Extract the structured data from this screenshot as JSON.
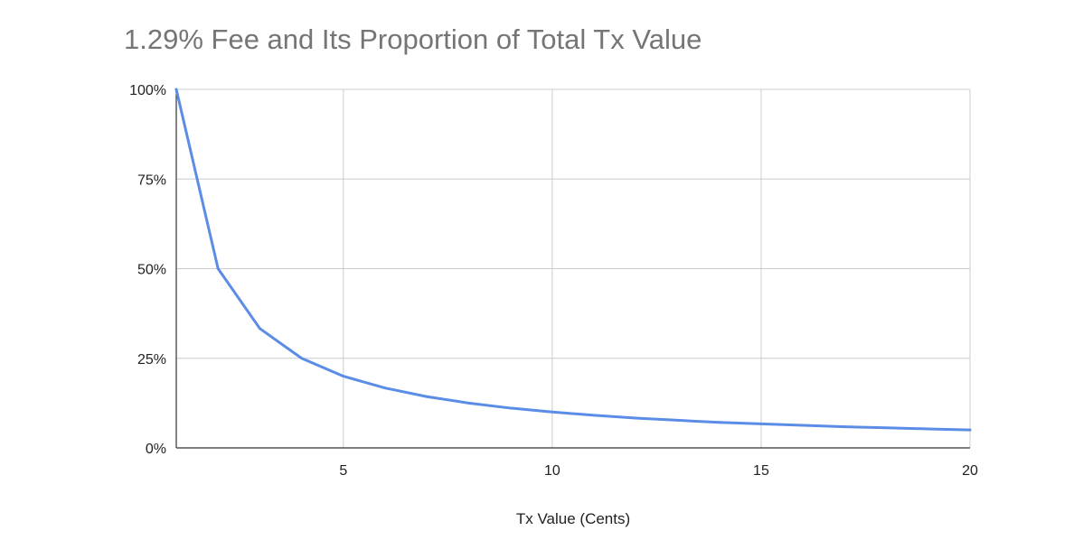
{
  "chart_data": {
    "type": "line",
    "title": "1.29% Fee and Its Proportion of Total Tx Value",
    "xlabel": "Tx Value (Cents)",
    "ylabel": "",
    "xlim": [
      1,
      20
    ],
    "ylim": [
      0,
      1
    ],
    "x_ticks": [
      5,
      10,
      15,
      20
    ],
    "x_tick_labels": [
      "5",
      "10",
      "15",
      "20"
    ],
    "y_ticks": [
      0,
      0.25,
      0.5,
      0.75,
      1
    ],
    "y_tick_labels": [
      "0%",
      "25%",
      "50%",
      "75%",
      "100%"
    ],
    "grid": true,
    "legend": "none",
    "series": [
      {
        "color": "#5b8ce6",
        "x": [
          1,
          2,
          3,
          4,
          5,
          6,
          7,
          8,
          9,
          10,
          11,
          12,
          13,
          14,
          15,
          16,
          17,
          18,
          19,
          20
        ],
        "values": [
          1.0,
          0.5,
          0.333,
          0.25,
          0.2,
          0.167,
          0.143,
          0.125,
          0.111,
          0.1,
          0.091,
          0.083,
          0.077,
          0.071,
          0.067,
          0.063,
          0.059,
          0.056,
          0.053,
          0.05
        ]
      }
    ],
    "colors": {
      "grid": "#cccccc",
      "axis": "#333333",
      "line": "#5b8ce6",
      "title": "#757575"
    }
  }
}
